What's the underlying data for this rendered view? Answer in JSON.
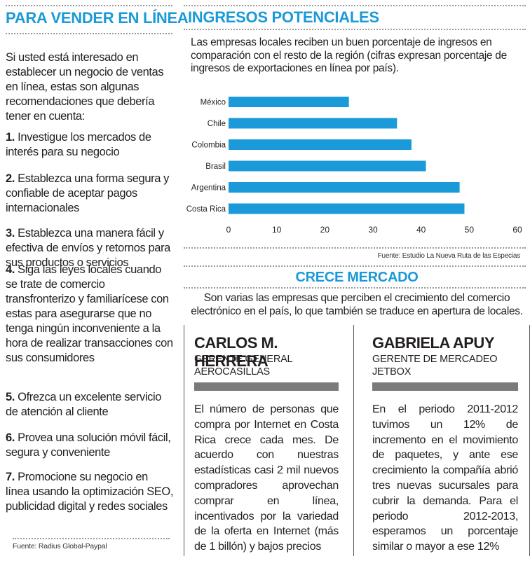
{
  "left": {
    "title": "PARA VENDER EN LÍNEA",
    "intro": "Si usted está interesado en establecer un negocio de ventas en línea, estas son algunas recomendaciones que debería tener en cuenta:",
    "items": [
      {
        "num": "1.",
        "text": " Investigue los mercados de interés para su negocio"
      },
      {
        "num": "2.",
        "text": " Establezca una forma segura y confiable de aceptar pagos internacionales"
      },
      {
        "num": "3.",
        "text": " Establezca una manera fácil y efectiva de envíos y retornos para sus productos o servicios"
      },
      {
        "num": "4.",
        "text": " Siga las leyes locales cuando se trate de comercio transfronterizo y familiarícese con estas para asegurarse que no tenga ningún inconveniente a la hora de realizar transacciones con sus consumidores"
      },
      {
        "num": "5.",
        "text": " Ofrezca un excelente servicio de atención al cliente"
      },
      {
        "num": "6.",
        "text": " Provea una solución móvil fácil, segura y conveniente"
      },
      {
        "num": "7.",
        "text": " Promocione su negocio en línea usando la optimización SEO, publicidad digital y redes sociales"
      }
    ],
    "source": "Fuente: Radius Global-Paypal"
  },
  "ingresos": {
    "title": "INGRESOS POTENCIALES",
    "description": "Las empresas locales reciben un buen porcentaje de ingresos en comparación con el resto de la región (cifras expresan porcentaje de ingresos de exportaciones en línea por país).",
    "source": "Fuente: Estudio La Nueva Ruta de las Especias"
  },
  "chart_data": {
    "type": "bar",
    "orientation": "horizontal",
    "categories": [
      "México",
      "Chile",
      "Colombia",
      "Brasil",
      "Argentina",
      "Costa Rica"
    ],
    "values": [
      25,
      35,
      38,
      41,
      48,
      49
    ],
    "xlim": [
      0,
      60
    ],
    "xticks": [
      0,
      10,
      20,
      30,
      40,
      50,
      60
    ],
    "title": "",
    "xlabel": "",
    "ylabel": "",
    "bar_color": "#1a9ad8",
    "grid": false
  },
  "crece": {
    "title": "CRECE MERCADO",
    "description": "Son varias las empresas que perciben el crecimiento del comercio electrónico en el país, lo que también se traduce en apertura de locales."
  },
  "cards": [
    {
      "name": "CARLOS M. HERRERA",
      "role1": "GERENTE GENERAL",
      "role2": "AEROCASILLAS",
      "quote": "El número de personas que compra por Internet en Costa Rica crece cada mes. De acuerdo con nuestras estadísticas casi 2 mil nuevos compradores aprovechan comprar en línea, incentivados por la variedad de la oferta en Internet (más de 1 billón) y bajos precios"
    },
    {
      "name": "GABRIELA APUY",
      "role1": "GERENTE DE MERCADEO",
      "role2": "JETBOX",
      "quote": "En el periodo 2011-2012 tuvimos un 12% de incremento en el movimiento de paquetes, y ante ese crecimiento la compañía abrió tres nuevas sucursales para cubrir la demanda. Para el periodo 2012-2013, esperamos un porcentaje similar o mayor a ese 12%"
    }
  ],
  "colors": {
    "accent": "#1a9ad8",
    "bar_gray": "#7a7a7a",
    "text": "#231f20"
  }
}
